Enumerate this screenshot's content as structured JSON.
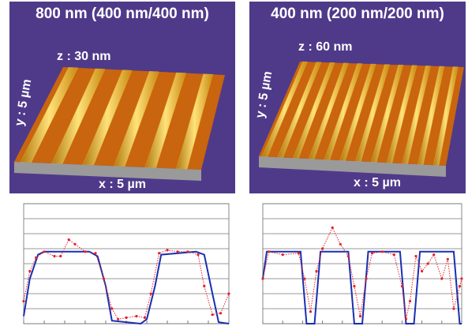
{
  "panels": [
    {
      "title": "800 nm (400 nm/400 nm)",
      "z_label": "z : 30 nm",
      "y_label": "y : 5 µm",
      "x_label": "x : 5 µm"
    },
    {
      "title": "400 nm (200 nm/200 nm)",
      "z_label": "z : 60 nm",
      "y_label": "y : 5 µm",
      "x_label": "x : 5 µm"
    }
  ],
  "chart_data": [
    {
      "type": "line",
      "xlim": [
        0,
        10
      ],
      "ylim": [
        0,
        8
      ],
      "xticks": [
        0,
        1,
        2,
        3,
        4,
        5,
        6,
        7,
        8,
        9,
        10
      ],
      "yticks": [
        0,
        1,
        2,
        3,
        4,
        5,
        6,
        7,
        8
      ],
      "grid": true,
      "series": [
        {
          "color": "#1a2fb0",
          "x": [
            0,
            0.3,
            0.7,
            1.0,
            3.2,
            3.6,
            4.0,
            4.3,
            5.7,
            6.0,
            6.4,
            6.7,
            8.4,
            8.8,
            9.2,
            9.5,
            10
          ],
          "values": [
            0.5,
            3.0,
            4.6,
            4.8,
            4.8,
            4.5,
            2.5,
            0.2,
            0,
            0.3,
            2.5,
            4.6,
            4.8,
            4.6,
            2,
            0.1,
            0
          ]
        },
        {
          "color": "#e8202a",
          "x": [
            0,
            0.3,
            0.6,
            1.0,
            1.5,
            1.8,
            2.2,
            2.5,
            3.0,
            3.5,
            3.9,
            4.3,
            4.6,
            5.0,
            5.5,
            5.9,
            6.2,
            6.6,
            7.0,
            7.5,
            8.0,
            8.5,
            8.8,
            9.2,
            9.6,
            10
          ],
          "values": [
            1.5,
            3.5,
            4.4,
            4.8,
            4.5,
            4.5,
            5.6,
            5.3,
            4.8,
            4.7,
            3.0,
            1.0,
            0.3,
            0.4,
            0.5,
            0.4,
            2.0,
            4.7,
            4.9,
            4.8,
            4.8,
            4.6,
            2.5,
            0.6,
            0.7,
            2.0
          ]
        }
      ]
    },
    {
      "type": "line",
      "xlim": [
        0,
        10
      ],
      "ylim": [
        0,
        8
      ],
      "xticks": [
        0,
        1,
        2,
        3,
        4,
        5,
        6,
        7,
        8,
        9,
        10
      ],
      "yticks": [
        0,
        1,
        2,
        3,
        4,
        5,
        6,
        7,
        8
      ],
      "grid": true,
      "series": [
        {
          "color": "#1a2fb0",
          "x": [
            0,
            0.2,
            1.9,
            2.2,
            2.6,
            2.9,
            4.3,
            4.6,
            5.0,
            5.3,
            6.9,
            7.2,
            7.6,
            7.9,
            9.6,
            9.9,
            10
          ],
          "values": [
            3,
            4.8,
            4.8,
            0,
            0,
            4.8,
            4.8,
            0,
            0,
            4.8,
            4.8,
            0,
            0,
            4.8,
            4.8,
            0,
            0
          ]
        },
        {
          "color": "#e8202a",
          "x": [
            0,
            0.3,
            1.0,
            1.8,
            2.1,
            2.4,
            2.7,
            3.0,
            3.5,
            3.9,
            4.3,
            4.6,
            4.9,
            5.2,
            5.5,
            6.0,
            6.6,
            7.0,
            7.2,
            7.4,
            7.7,
            8.0,
            8.3,
            8.6,
            9.0,
            9.3,
            9.6,
            9.9,
            10
          ],
          "values": [
            3,
            4.8,
            4.6,
            4.7,
            3.0,
            0.8,
            3.5,
            5.0,
            6.4,
            5.3,
            4.5,
            2.5,
            0.5,
            3.0,
            4.7,
            4.8,
            4.6,
            2.5,
            0.3,
            1.5,
            4.5,
            3.5,
            4.0,
            4.6,
            3.0,
            4.3,
            1.0,
            2.5,
            3
          ]
        }
      ]
    }
  ]
}
